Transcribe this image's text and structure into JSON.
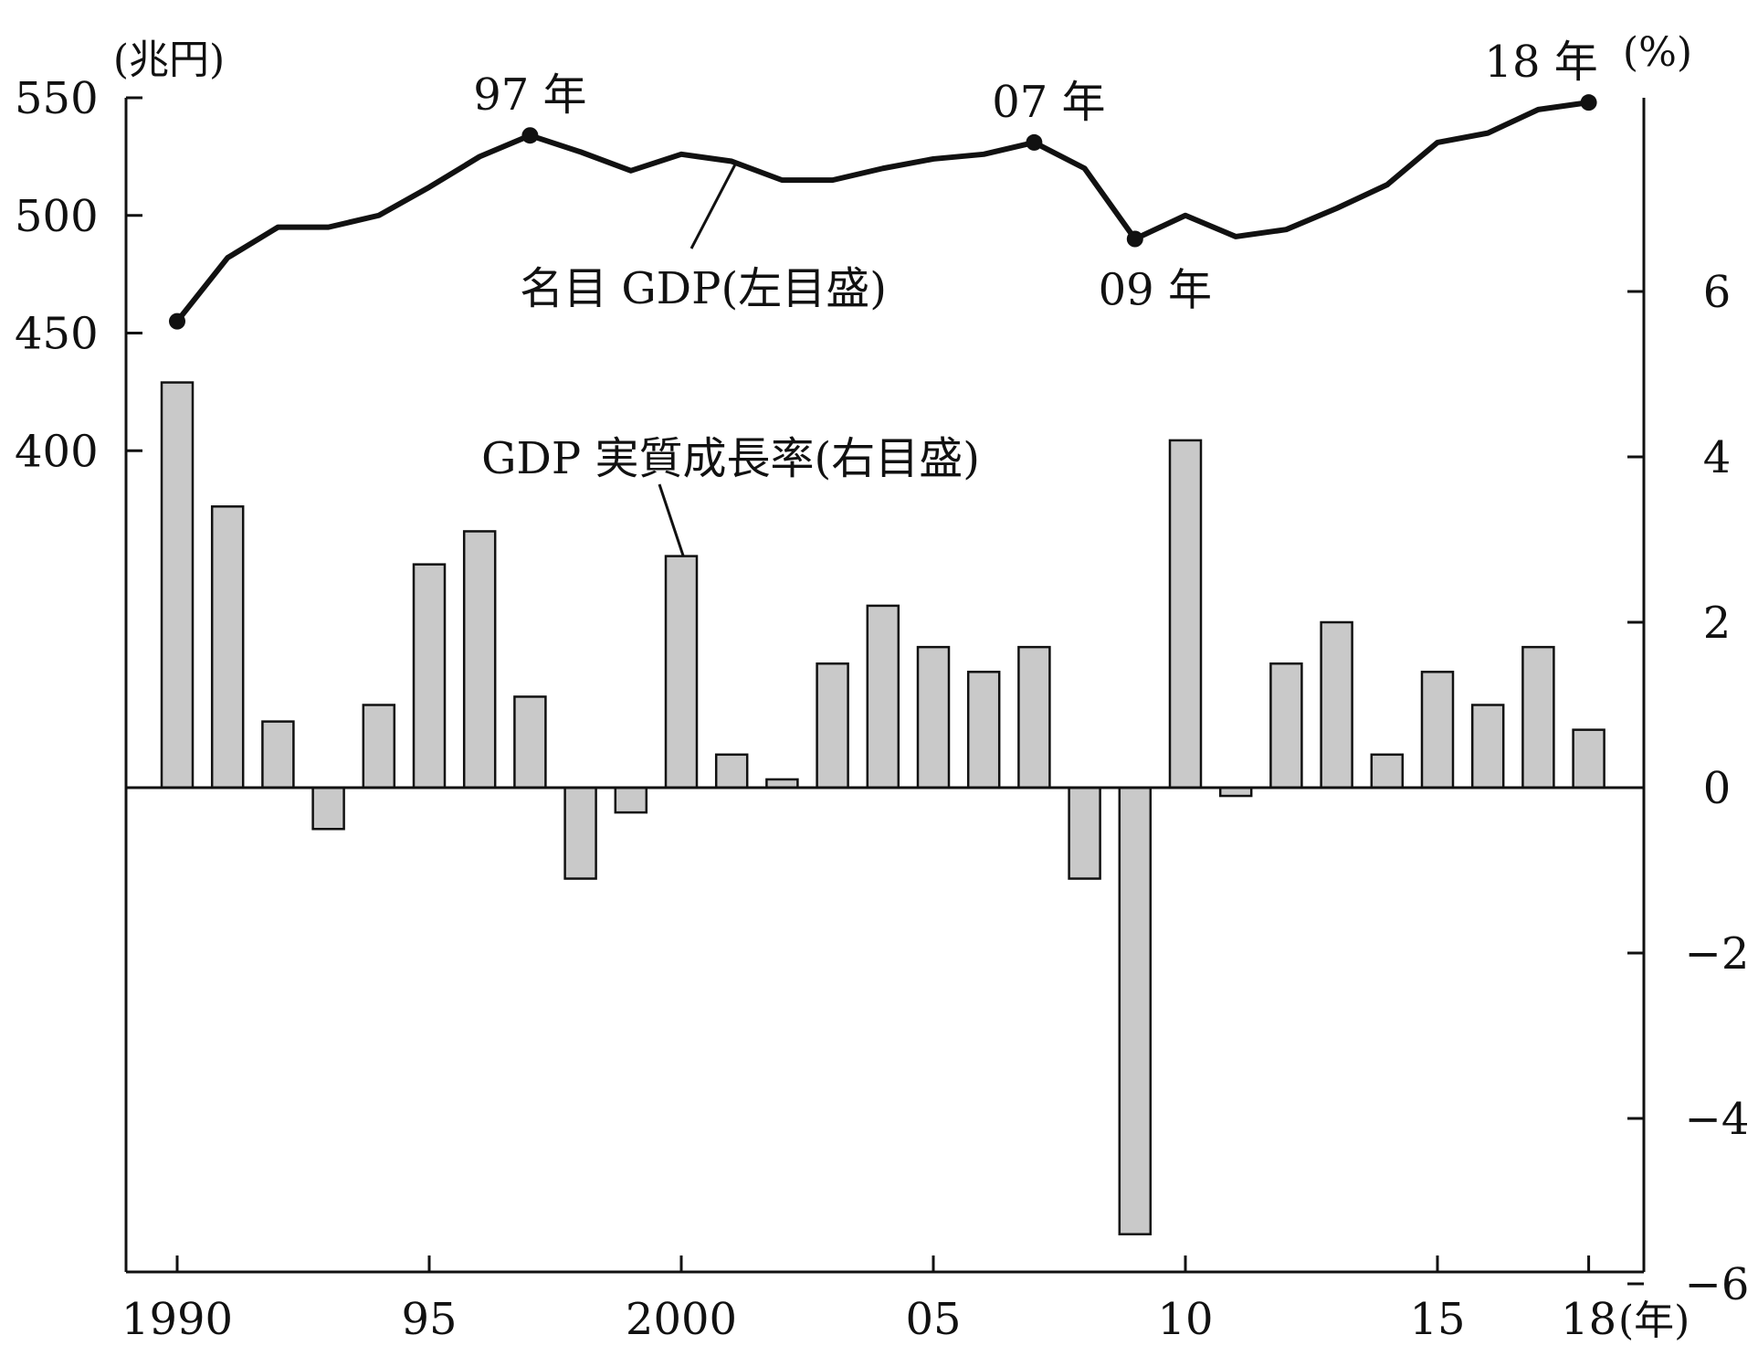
{
  "chart_data": {
    "type": "bar+line",
    "colors": {
      "bar_fill": "#c9c9c9",
      "ink": "#111111"
    },
    "x": {
      "years": [
        1990,
        1991,
        1992,
        1993,
        1994,
        1995,
        1996,
        1997,
        1998,
        1999,
        2000,
        2001,
        2002,
        2003,
        2004,
        2005,
        2006,
        2007,
        2008,
        2009,
        2010,
        2011,
        2012,
        2013,
        2014,
        2015,
        2016,
        2017,
        2018
      ],
      "tick_labels": [
        {
          "year": 1990,
          "label": "1990"
        },
        {
          "year": 1995,
          "label": "95"
        },
        {
          "year": 2000,
          "label": "2000"
        },
        {
          "year": 2005,
          "label": "05"
        },
        {
          "year": 2010,
          "label": "10"
        },
        {
          "year": 2015,
          "label": "15"
        },
        {
          "year": 2018,
          "label": "18"
        }
      ],
      "unit_label": "(年)"
    },
    "y_left": {
      "unit_label": "(兆円)",
      "range": [
        300,
        550
      ],
      "ticks": [
        400,
        450,
        500,
        550
      ]
    },
    "y_right": {
      "unit_label": "(%)",
      "range": [
        -6,
        8.5
      ],
      "ticks": [
        {
          "value": 6,
          "label": "6"
        },
        {
          "value": 4,
          "label": "4"
        },
        {
          "value": 2,
          "label": "2"
        },
        {
          "value": 0,
          "label": "0"
        },
        {
          "value": -2,
          "label": "−2"
        },
        {
          "value": -4,
          "label": "−4"
        },
        {
          "value": -6,
          "label": "−6"
        }
      ]
    },
    "series": [
      {
        "name": "名目 GDP(左目盛)",
        "type": "line",
        "axis": "left",
        "values": [
          455,
          482,
          495,
          495,
          500,
          512,
          525,
          534,
          527,
          519,
          526,
          523,
          515,
          515,
          520,
          524,
          526,
          531,
          520,
          490,
          500,
          491,
          494,
          503,
          513,
          531,
          535,
          545,
          548
        ],
        "markers": [
          {
            "year": 1990,
            "label": ""
          },
          {
            "year": 1997,
            "label": "97 年"
          },
          {
            "year": 2007,
            "label": "07 年"
          },
          {
            "year": 2009,
            "label": "09 年"
          },
          {
            "year": 2018,
            "label": "18 年"
          }
        ]
      },
      {
        "name": "GDP 実質成長率(右目盛)",
        "type": "bar",
        "axis": "right",
        "values": [
          4.9,
          3.4,
          0.8,
          -0.5,
          1.0,
          2.7,
          3.1,
          1.1,
          -1.1,
          -0.3,
          2.8,
          0.4,
          0.1,
          1.5,
          2.2,
          1.7,
          1.4,
          1.7,
          -1.1,
          -5.4,
          4.2,
          -0.1,
          1.5,
          2.0,
          0.4,
          1.4,
          1.0,
          1.7,
          0.7
        ]
      }
    ]
  }
}
